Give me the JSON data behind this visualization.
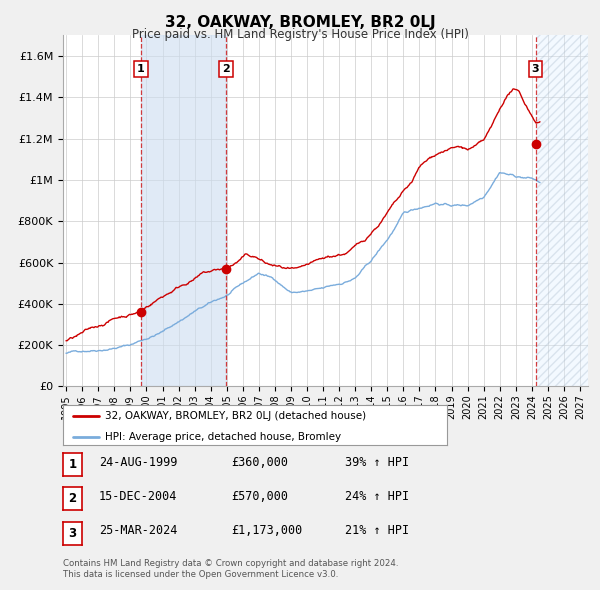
{
  "title": "32, OAKWAY, BROMLEY, BR2 0LJ",
  "subtitle": "Price paid vs. HM Land Registry's House Price Index (HPI)",
  "ylim": [
    0,
    1700000
  ],
  "yticks": [
    0,
    200000,
    400000,
    600000,
    800000,
    1000000,
    1200000,
    1400000,
    1600000
  ],
  "ytick_labels": [
    "£0",
    "£200K",
    "£400K",
    "£600K",
    "£800K",
    "£1M",
    "£1.2M",
    "£1.4M",
    "£1.6M"
  ],
  "xlim_start": 1994.8,
  "xlim_end": 2027.5,
  "xticks": [
    1995,
    1996,
    1997,
    1998,
    1999,
    2000,
    2001,
    2002,
    2003,
    2004,
    2005,
    2006,
    2007,
    2008,
    2009,
    2010,
    2011,
    2012,
    2013,
    2014,
    2015,
    2016,
    2017,
    2018,
    2019,
    2020,
    2021,
    2022,
    2023,
    2024,
    2025,
    2026,
    2027
  ],
  "background_color": "#f0f0f0",
  "plot_background": "#ffffff",
  "grid_color": "#cccccc",
  "red_line_color": "#cc0000",
  "blue_line_color": "#7aacdc",
  "sale_marker_color": "#cc0000",
  "shading_color": "#ccddf0",
  "shading_alpha": 0.6,
  "transactions": [
    {
      "label": "1",
      "date_x": 1999.646,
      "price": 360000,
      "date_str": "24-AUG-1999",
      "hpi_pct": "39%"
    },
    {
      "label": "2",
      "date_x": 2004.958,
      "price": 570000,
      "date_str": "15-DEC-2004",
      "hpi_pct": "24%"
    },
    {
      "label": "3",
      "date_x": 2024.231,
      "price": 1173000,
      "date_str": "25-MAR-2024",
      "hpi_pct": "21%"
    }
  ],
  "legend_label_red": "32, OAKWAY, BROMLEY, BR2 0LJ (detached house)",
  "legend_label_blue": "HPI: Average price, detached house, Bromley",
  "footer_line1": "Contains HM Land Registry data © Crown copyright and database right 2024.",
  "footer_line2": "This data is licensed under the Open Government Licence v3.0."
}
